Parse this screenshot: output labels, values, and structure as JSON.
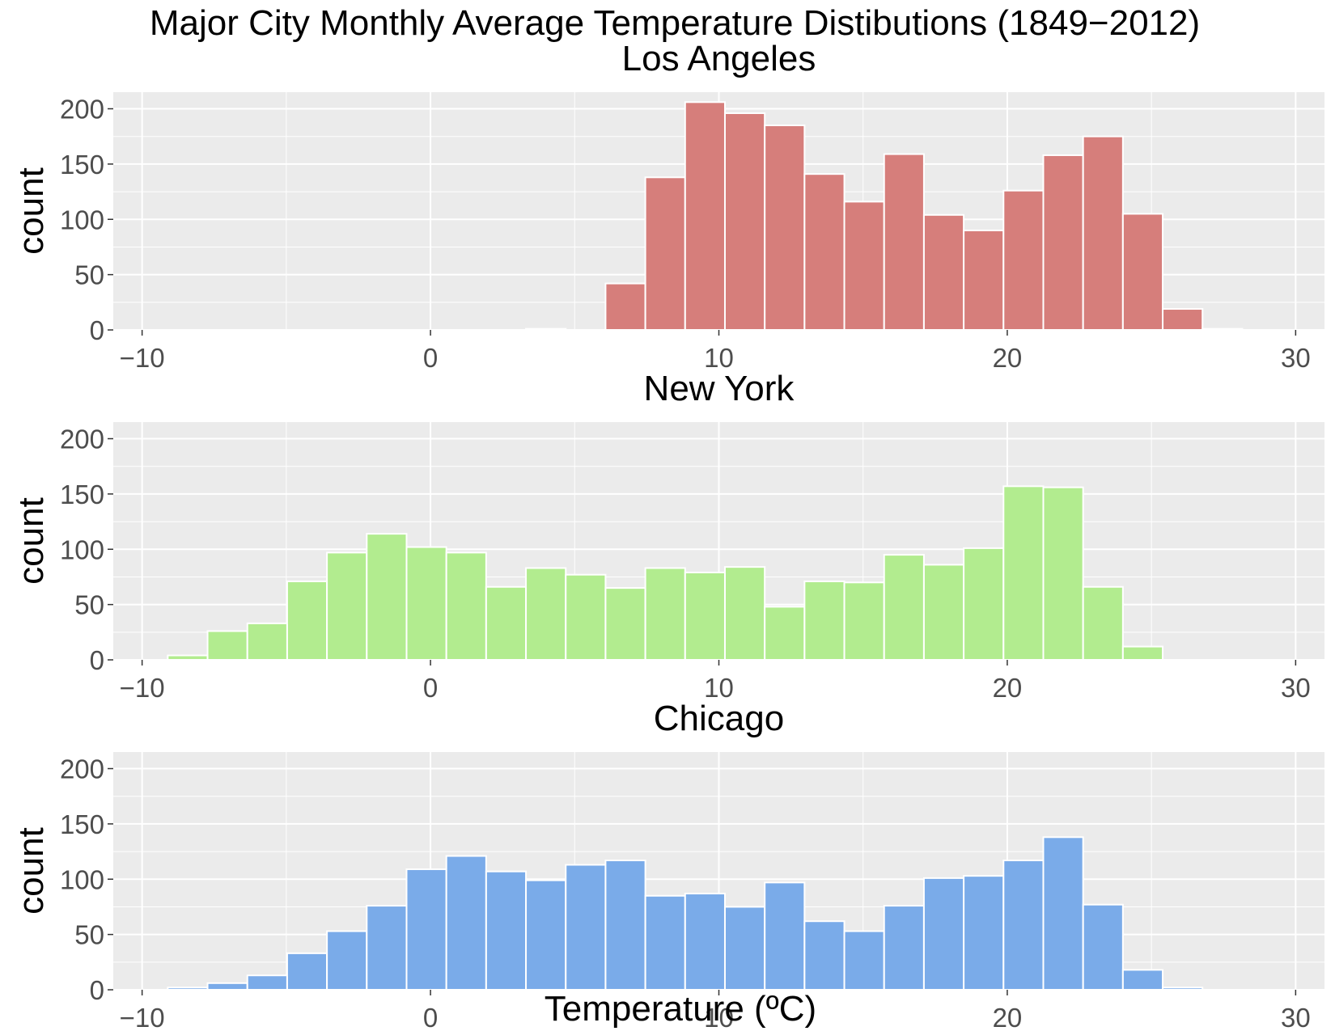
{
  "title": "Major City Monthly Average Temperature Distibutions (1849−2012)",
  "xlabel": "Temperature (ºC)",
  "ylabel": "count",
  "chart_data": [
    {
      "type": "bar",
      "title": "Los Angeles",
      "color": "#d67e7b",
      "xlabel": "",
      "ylabel": "count",
      "xlim": [
        -11,
        31
      ],
      "ylim": [
        0,
        215
      ],
      "x_ticks": [
        -10,
        0,
        10,
        20,
        30
      ],
      "y_ticks": [
        0,
        50,
        100,
        150,
        200
      ],
      "bin_width": 1.38,
      "bin_centers": [
        -9.8,
        -8.42,
        -7.04,
        -5.66,
        -4.28,
        -2.9,
        -1.52,
        -0.14,
        1.24,
        2.62,
        4.0,
        5.38,
        6.76,
        8.14,
        9.52,
        10.9,
        12.28,
        13.66,
        15.04,
        16.42,
        17.8,
        19.18,
        20.56,
        21.94,
        23.32,
        24.7,
        26.08,
        27.46
      ],
      "values": [
        0,
        0,
        0,
        0,
        0,
        0,
        0,
        0,
        0,
        0,
        1,
        0,
        42,
        138,
        206,
        196,
        185,
        141,
        116,
        159,
        104,
        90,
        126,
        158,
        175,
        105,
        19,
        1
      ]
    },
    {
      "type": "bar",
      "title": "New York",
      "color": "#b2ec8f",
      "xlabel": "",
      "ylabel": "count",
      "xlim": [
        -11,
        31
      ],
      "ylim": [
        0,
        215
      ],
      "x_ticks": [
        -10,
        0,
        10,
        20,
        30
      ],
      "y_ticks": [
        0,
        50,
        100,
        150,
        200
      ],
      "bin_width": 1.38,
      "bin_centers": [
        -8.42,
        -7.04,
        -5.66,
        -4.28,
        -2.9,
        -1.52,
        -0.14,
        1.24,
        2.62,
        4.0,
        5.38,
        6.76,
        8.14,
        9.52,
        10.9,
        12.28,
        13.66,
        15.04,
        16.42,
        17.8,
        19.18,
        20.56,
        21.94,
        23.32,
        24.7
      ],
      "values": [
        4,
        26,
        33,
        71,
        97,
        114,
        102,
        97,
        66,
        83,
        77,
        65,
        83,
        79,
        84,
        48,
        71,
        70,
        95,
        86,
        101,
        157,
        156,
        66,
        12
      ]
    },
    {
      "type": "bar",
      "title": "Chicago",
      "color": "#7aabe9",
      "xlabel": "Temperature (ºC)",
      "ylabel": "count",
      "xlim": [
        -11,
        31
      ],
      "ylim": [
        0,
        215
      ],
      "x_ticks": [
        -10,
        0,
        10,
        20,
        30
      ],
      "y_ticks": [
        0,
        50,
        100,
        150,
        200
      ],
      "bin_width": 1.38,
      "bin_centers": [
        -8.42,
        -7.04,
        -5.66,
        -4.28,
        -2.9,
        -1.52,
        -0.14,
        1.24,
        2.62,
        4.0,
        5.38,
        6.76,
        8.14,
        9.52,
        10.9,
        12.28,
        13.66,
        15.04,
        16.42,
        17.8,
        19.18,
        20.56,
        21.94,
        23.32,
        24.7,
        26.08
      ],
      "values": [
        2,
        6,
        13,
        33,
        53,
        76,
        109,
        121,
        107,
        99,
        113,
        117,
        85,
        87,
        75,
        97,
        62,
        53,
        76,
        101,
        103,
        117,
        138,
        77,
        18,
        2
      ]
    }
  ]
}
